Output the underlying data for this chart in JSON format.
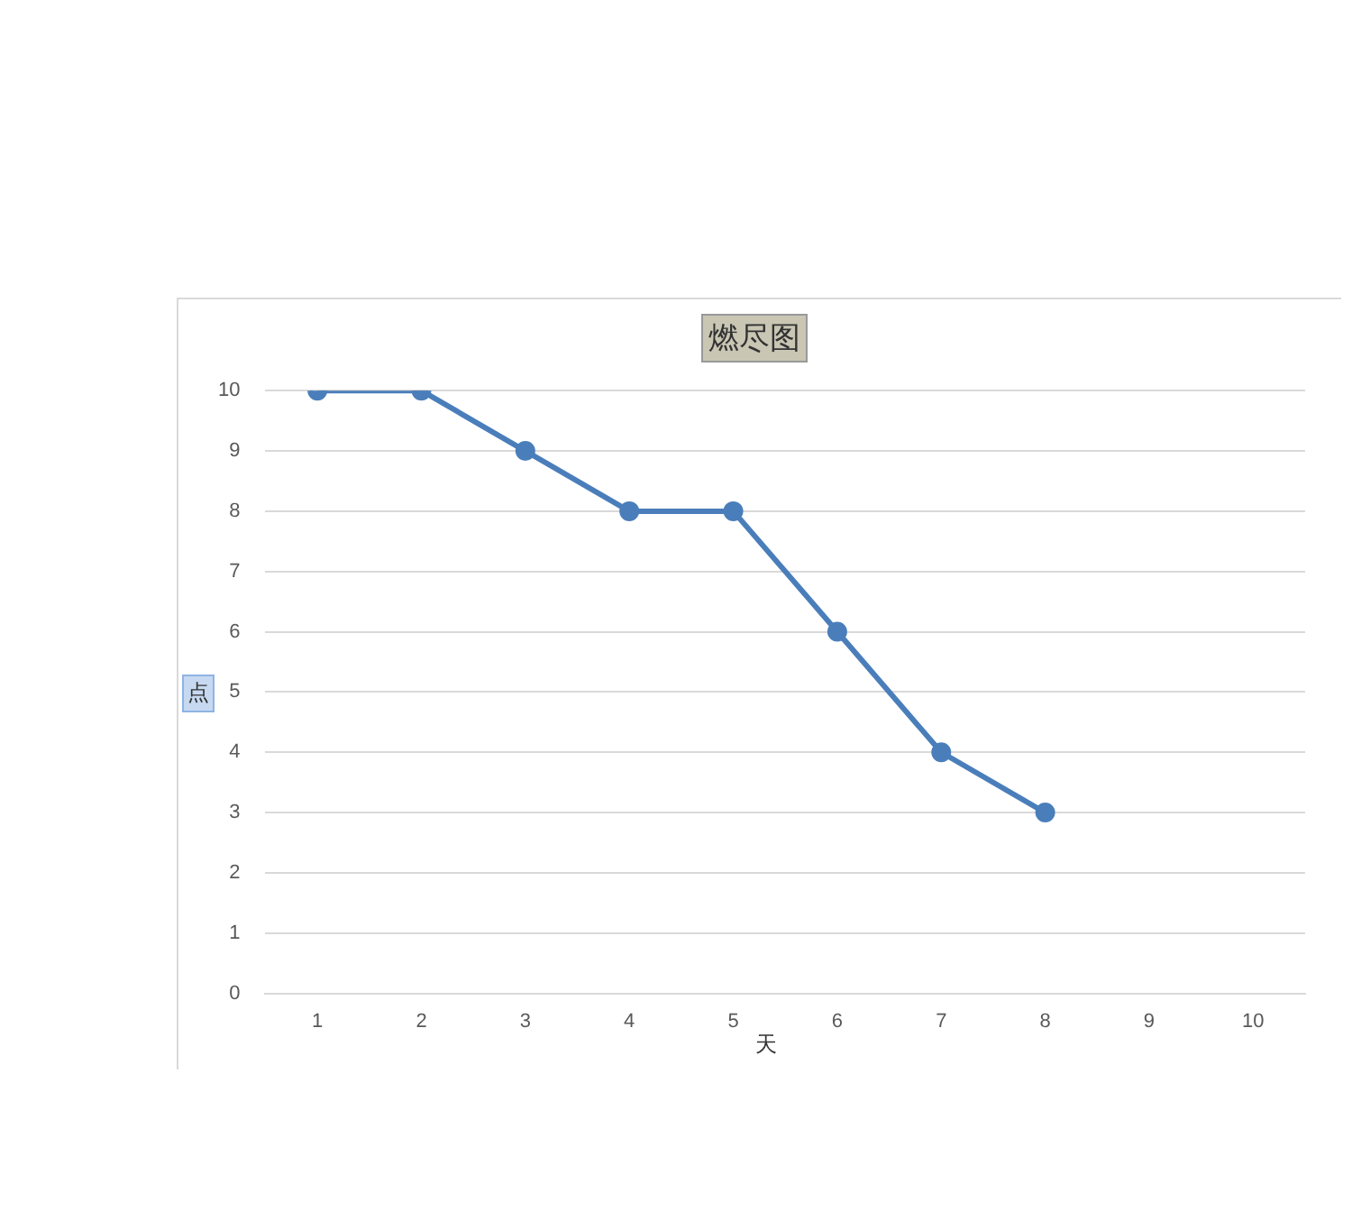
{
  "chart_data": {
    "type": "line",
    "title": "燃尽图",
    "xlabel": "天",
    "ylabel": "点",
    "categories": [
      "1",
      "2",
      "3",
      "4",
      "5",
      "6",
      "7",
      "8",
      "9",
      "10"
    ],
    "series": [
      {
        "color": "#4a7ebb",
        "values": [
          10,
          10,
          9,
          8,
          8,
          6,
          4,
          3,
          null,
          null
        ]
      }
    ],
    "ylim": [
      0,
      10
    ],
    "yticks": [
      0,
      1,
      2,
      3,
      4,
      5,
      6,
      7,
      8,
      9,
      10
    ],
    "grid": "y",
    "legend": false,
    "marker": "circle"
  }
}
